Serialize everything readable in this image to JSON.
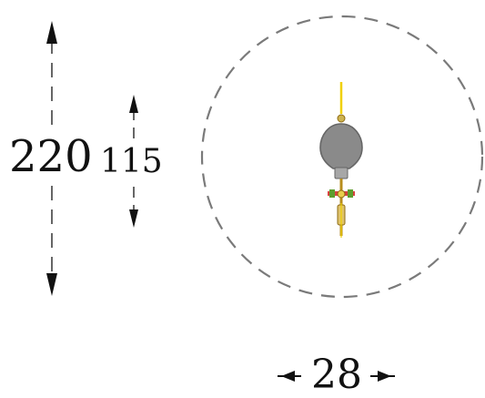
{
  "diagram": {
    "dimensions": {
      "outer_height": "220",
      "inner_height": "115",
      "width": "28"
    },
    "colors": {
      "line": "#333333",
      "dashed_circle": "#777777",
      "bulb_fill": "#8a8a8a",
      "bulb_stroke": "#666666",
      "accent_yellow": "#f1d300",
      "accent_red": "#d9423f",
      "accent_green": "#5d9d2e",
      "stem": "#b78d1d"
    },
    "icons": {
      "vertical_arrow": "double-arrow-vertical-icon",
      "horizontal_arrow": "double-arrow-horizontal-icon",
      "object": "bulb-icon"
    }
  }
}
